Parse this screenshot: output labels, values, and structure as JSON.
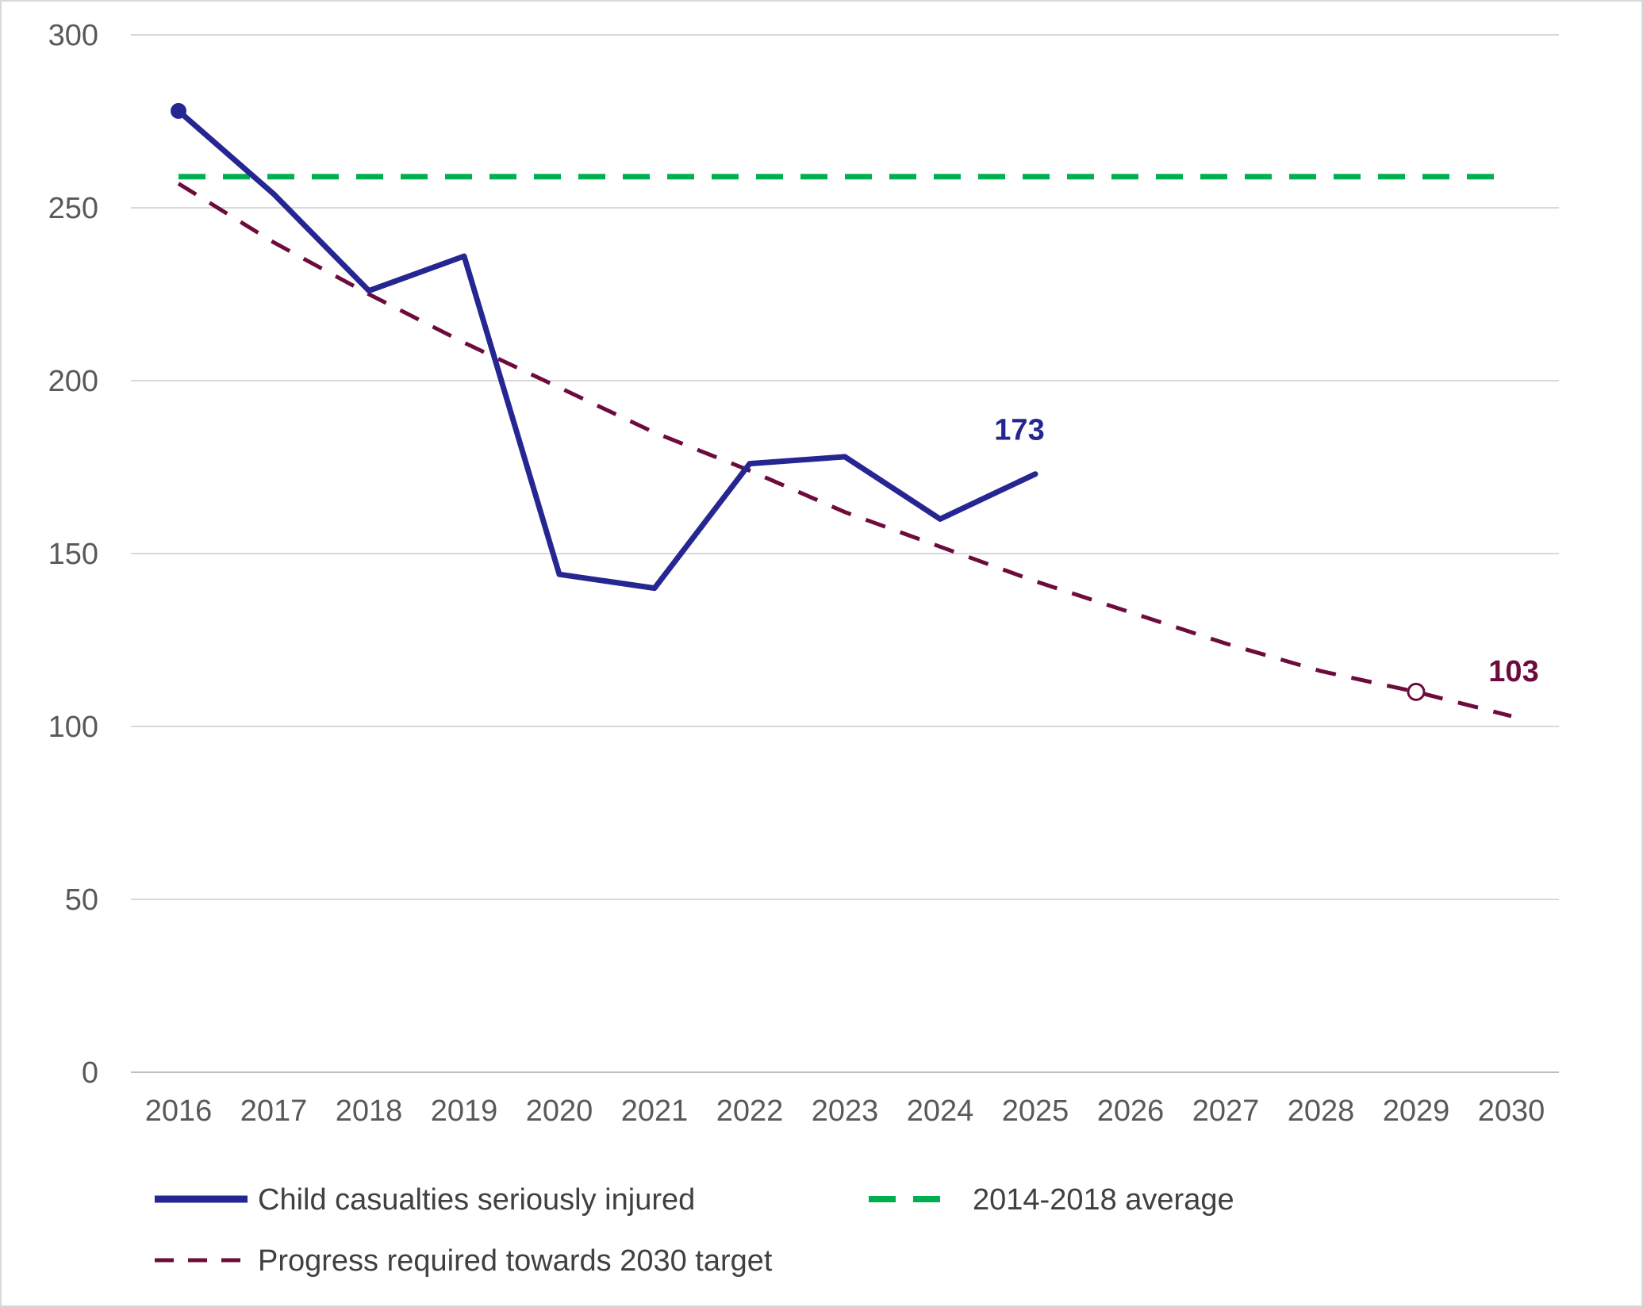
{
  "chart_data": {
    "type": "line",
    "title": "",
    "xlabel": "",
    "ylabel": "",
    "x": [
      "2016",
      "2017",
      "2018",
      "2019",
      "2020",
      "2021",
      "2022",
      "2023",
      "2024",
      "2025",
      "2026",
      "2027",
      "2028",
      "2029",
      "2030"
    ],
    "ylim": [
      0,
      300
    ],
    "yticks": [
      "0",
      "50",
      "100",
      "150",
      "200",
      "250",
      "300"
    ],
    "grid": true,
    "legend_position": "bottom",
    "series": [
      {
        "name": "Child casualties seriously injured",
        "color": "#262693",
        "style": "solid",
        "values": [
          278,
          254,
          226,
          236,
          144,
          140,
          176,
          178,
          160,
          173,
          null,
          null,
          null,
          null,
          null
        ],
        "end_label": "173"
      },
      {
        "name": "2014-2018 average",
        "color": "#00b050",
        "style": "dashed",
        "values": [
          259,
          259,
          259,
          259,
          259,
          259,
          259,
          259,
          259,
          259,
          259,
          259,
          259,
          259,
          259
        ]
      },
      {
        "name": "Progress required towards 2030 target",
        "color": "#6d0c3c",
        "style": "dashed",
        "values": [
          257,
          240,
          225,
          211,
          198,
          185,
          174,
          162,
          152,
          142,
          133,
          124,
          116,
          110,
          103
        ],
        "end_label": "103"
      }
    ]
  }
}
